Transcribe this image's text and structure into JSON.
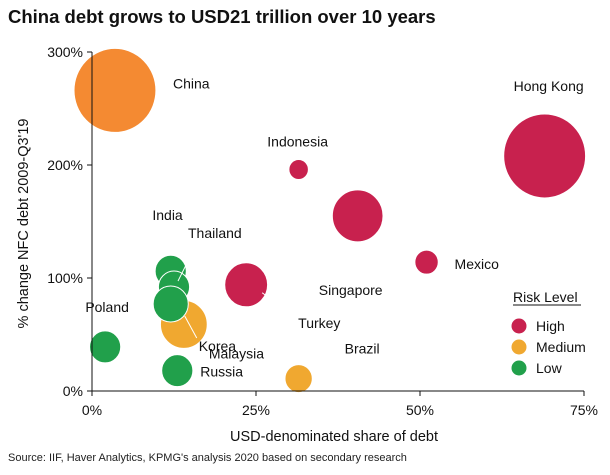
{
  "title": "China debt grows to USD21 trillion over 10 years",
  "source": "Source: IIF, Haver Analytics, KPMG's analysis 2020 based on secondary research",
  "chart_data": {
    "type": "bubble",
    "xlabel": "USD-denominated  share of debt",
    "ylabel": "% change NFC debt 2009-Q3'19",
    "xlim": [
      0,
      75
    ],
    "ylim": [
      0,
      300
    ],
    "xticks": [
      0,
      25,
      50,
      75
    ],
    "xtick_labels": [
      "0%",
      "25%",
      "50%",
      "75%"
    ],
    "yticks": [
      0,
      100,
      200,
      300
    ],
    "ytick_labels": [
      "0%",
      "100%",
      "200%",
      "300%"
    ],
    "grid": false,
    "legend": {
      "title": "Risk Level",
      "placement": "right",
      "items": [
        {
          "key": "High",
          "label": "High",
          "color": "#c8214e"
        },
        {
          "key": "Medium",
          "label": "Medium",
          "color": "#f0a830"
        },
        {
          "key": "Low",
          "label": "Low",
          "color": "#21a04b"
        }
      ]
    },
    "colors": {
      "China": "#f48a32",
      "High": "#c8214e",
      "Medium": "#f0a830",
      "Low": "#21a04b"
    },
    "points": [
      {
        "name": "China",
        "x": 3.5,
        "y": 266,
        "size": 21,
        "risk": "China"
      },
      {
        "name": "Hong Kong",
        "x": 69,
        "y": 208,
        "size": 21,
        "risk": "High"
      },
      {
        "name": "Indonesia",
        "x": 31.5,
        "y": 196,
        "size": 5,
        "risk": "High"
      },
      {
        "name": "Singapore",
        "x": 40.5,
        "y": 155,
        "size": 13,
        "risk": "High"
      },
      {
        "name": "Mexico",
        "x": 51,
        "y": 114,
        "size": 6,
        "risk": "High"
      },
      {
        "name": "Turkey",
        "x": 23.5,
        "y": 94,
        "size": 11,
        "risk": "High"
      },
      {
        "name": "Brazil",
        "x": 31.5,
        "y": 11,
        "size": 7,
        "risk": "Medium"
      },
      {
        "name": "Malaysia",
        "x": 14,
        "y": 59,
        "size": 12,
        "risk": "Medium"
      },
      {
        "name": "India",
        "x": 12,
        "y": 106,
        "size": 8,
        "risk": "Low"
      },
      {
        "name": "Thailand",
        "x": 12.5,
        "y": 92,
        "size": 8,
        "risk": "Low"
      },
      {
        "name": "Korea",
        "x": 12,
        "y": 77,
        "size": 9,
        "risk": "Low"
      },
      {
        "name": "Poland",
        "x": 2,
        "y": 39,
        "size": 8,
        "risk": "Low"
      },
      {
        "name": "Russia",
        "x": 13,
        "y": 18,
        "size": 8,
        "risk": "Low"
      }
    ]
  }
}
